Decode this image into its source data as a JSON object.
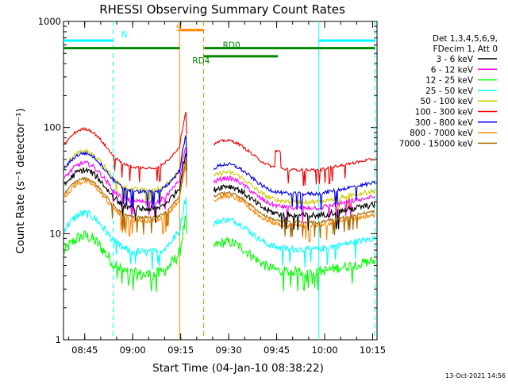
{
  "chart_data": {
    "type": "line",
    "title": "RHESSI Observing Summary Count Rates",
    "xlabel": "Start Time (04-Jan-10 08:38:22)",
    "ylabel": "Count Rate (s⁻¹ detector⁻¹)",
    "y_scale": "log",
    "ylim": [
      1,
      1000
    ],
    "y_ticks": [
      {
        "value": 1,
        "label": "1"
      },
      {
        "value": 10,
        "label": "10"
      },
      {
        "value": 100,
        "label": "100"
      },
      {
        "value": 1000,
        "label": "1000"
      }
    ],
    "x_unit": "minutes since 08:38:22",
    "xlim": [
      0,
      98
    ],
    "x_ticks": [
      {
        "value": 6.63,
        "label": "08:45"
      },
      {
        "value": 21.63,
        "label": "09:00"
      },
      {
        "value": 36.63,
        "label": "09:15"
      },
      {
        "value": 51.63,
        "label": "09:30"
      },
      {
        "value": 66.63,
        "label": "09:45"
      },
      {
        "value": 81.63,
        "label": "10:00"
      },
      {
        "value": 96.63,
        "label": "10:15"
      }
    ],
    "legend_header": [
      "Det 1,3,4,5,6,9,",
      "FDecim 1, Att 0"
    ],
    "legend_position": "right",
    "series": [
      {
        "name": "3 - 6 keV",
        "color": "#000000",
        "level": 18,
        "noise": 0.07,
        "dip": 0.35,
        "post": 15.6,
        "post_noise": 0.07
      },
      {
        "name": "6 - 12 keV",
        "color": "#ff00ff",
        "level": 21,
        "noise": 0.05,
        "dip": 0.35,
        "post": 18.5,
        "post_noise": 0.05
      },
      {
        "name": "12 - 25 keV",
        "color": "#00ff00",
        "level": 4.3,
        "noise": 0.14,
        "dip": 0.45,
        "post": 4.6,
        "post_noise": 0.11
      },
      {
        "name": "25 - 50 keV",
        "color": "#00ffff",
        "level": 7.0,
        "noise": 0.09,
        "dip": 0.3,
        "post": 7.5,
        "post_noise": 0.07
      },
      {
        "name": "50 - 100 keV",
        "color": "#cccc00",
        "level": 27,
        "noise": 0.05,
        "dip": 0.35,
        "post": 21,
        "post_noise": 0.05
      },
      {
        "name": "100 - 300 keV",
        "color": "#ee0000",
        "level": 44,
        "noise": 0.03,
        "dip": 0.45,
        "post": 42,
        "post_noise": 0.03
      },
      {
        "name": "300 - 800 keV",
        "color": "#0000ee",
        "level": 26,
        "noise": 0.04,
        "dip": 0.45,
        "post": 25,
        "post_noise": 0.04
      },
      {
        "name": "800 - 7000 keV",
        "color": "#ff8800",
        "level": 14,
        "noise": 0.05,
        "dip": 0.4,
        "post": 12.5,
        "post_noise": 0.05
      },
      {
        "name": "7000 - 15000 keV",
        "color": "#aa6600",
        "level": 15,
        "noise": 0.03,
        "dip": 0.4,
        "post": 13.5,
        "post_noise": 0.03
      }
    ],
    "gap": {
      "start": 38.5,
      "end": 47
    },
    "vlines": [
      {
        "x": 15.5,
        "color": "#00ffff",
        "style": "dashed"
      },
      {
        "x": 36.3,
        "color": "#ff8800",
        "style": "solid"
      },
      {
        "x": 43.8,
        "color": "#ff8800",
        "style": "dashed"
      },
      {
        "x": 79.8,
        "color": "#00ffff",
        "style": "solid"
      },
      {
        "x": 97.3,
        "color": "#00ffff",
        "style": "dashed"
      }
    ],
    "bars": [
      {
        "label": "N",
        "color": "#00ffff",
        "segments": [
          [
            0,
            15.5
          ],
          [
            79.8,
            97.3
          ]
        ],
        "level": 660,
        "width": 3
      },
      {
        "label": "S",
        "color": "#ff8800",
        "segments": [
          [
            36.3,
            43.8
          ]
        ],
        "level": 830,
        "width": 3
      },
      {
        "label": "RD0",
        "color": "#008800",
        "segments": [
          [
            0,
            36.3
          ],
          [
            44,
            97.3
          ]
        ],
        "level": 560,
        "width": 3
      },
      {
        "label": "RD4",
        "color": "#008800",
        "segments": [
          [
            43.8,
            67
          ]
        ],
        "level": 470,
        "width": 3
      }
    ],
    "annotations": [
      {
        "text": "N",
        "color": "#00ffff",
        "x": 19,
        "y": 760
      },
      {
        "text": "S",
        "color": "#ff8800",
        "x": 36,
        "y": 870
      },
      {
        "text": "RD0",
        "color": "#008800",
        "x": 52.5,
        "y": 600
      },
      {
        "text": "RD4",
        "color": "#008800",
        "x": 43,
        "y": 430
      }
    ]
  },
  "timestamp": "13-Oct-2021 14:56"
}
